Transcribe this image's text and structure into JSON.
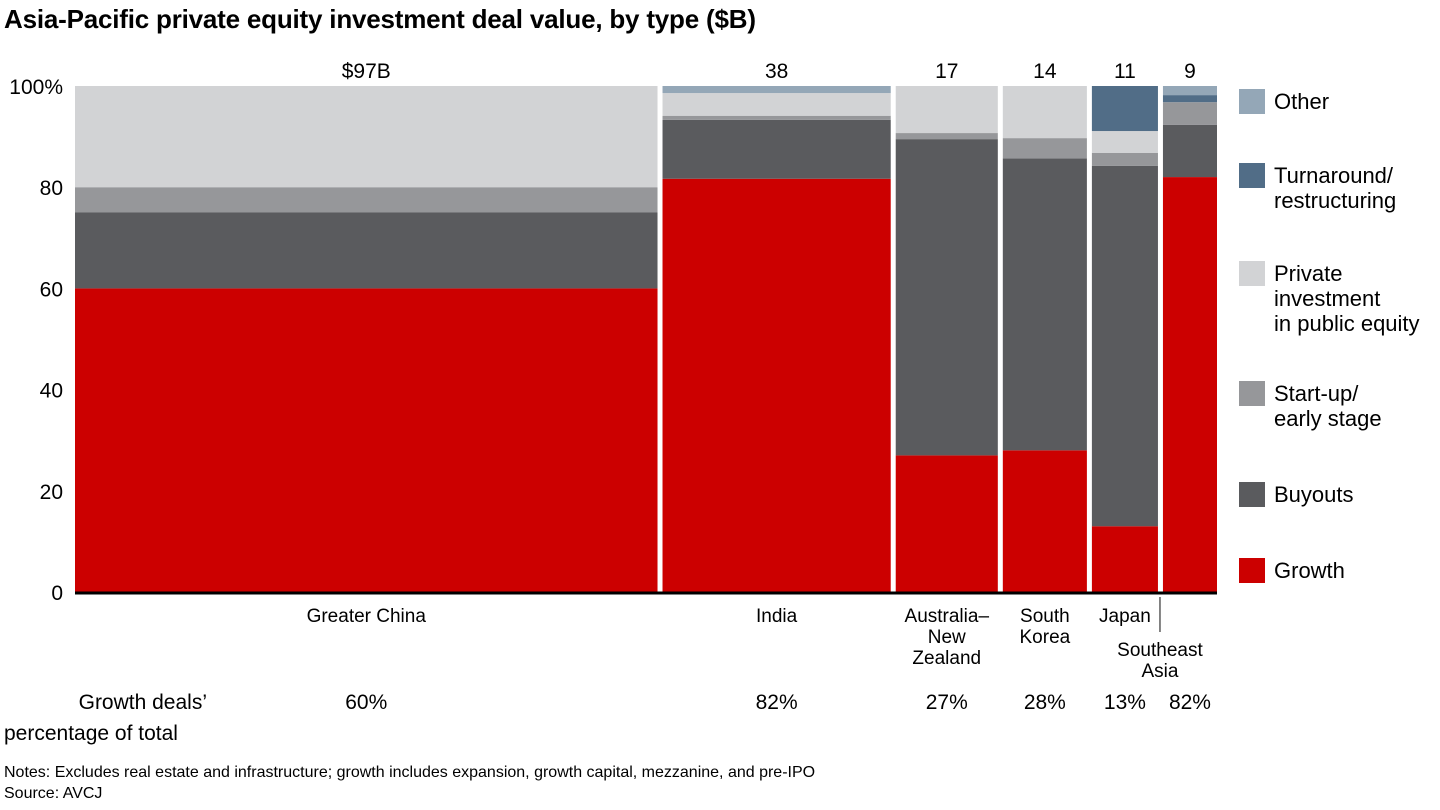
{
  "chart_data": {
    "type": "bar",
    "subtype": "marimekko (100% stacked, variable width)",
    "title": "Asia-Pacific private equity investment deal value, by type ($B)",
    "xlabel": "",
    "ylabel": "",
    "ylim": [
      0,
      100
    ],
    "yticks": [
      "0",
      "20",
      "40",
      "60",
      "80",
      "100%"
    ],
    "yticks_values": [
      0,
      20,
      40,
      60,
      80,
      100
    ],
    "grid": false,
    "legend_position": "right",
    "categories": [
      {
        "name": "Greater China",
        "label_lines": [
          "Greater China"
        ],
        "total_label": "$97B",
        "total": 97,
        "growth_pct_label": "60%"
      },
      {
        "name": "India",
        "label_lines": [
          "India"
        ],
        "total_label": "38",
        "total": 38,
        "growth_pct_label": "82%"
      },
      {
        "name": "Australia–New Zealand",
        "label_lines": [
          "Australia–",
          "New",
          "Zealand"
        ],
        "total_label": "17",
        "total": 17,
        "growth_pct_label": "27%"
      },
      {
        "name": "South Korea",
        "label_lines": [
          "South",
          "Korea"
        ],
        "total_label": "14",
        "total": 14,
        "growth_pct_label": "28%"
      },
      {
        "name": "Japan",
        "label_lines": [
          "Japan"
        ],
        "total_label": "11",
        "total": 11,
        "growth_pct_label": "13%"
      },
      {
        "name": "Southeast Asia",
        "label_lines": [
          "Southeast",
          "Asia"
        ],
        "total_label": "9",
        "total": 9,
        "growth_pct_label": "82%",
        "leader_line": true
      }
    ],
    "series": [
      {
        "name": "Growth",
        "legend_lines": [
          "Growth"
        ],
        "color": "#cc0000",
        "values": [
          60,
          82,
          27,
          28,
          13,
          82
        ]
      },
      {
        "name": "Buyouts",
        "legend_lines": [
          "Buyouts"
        ],
        "color": "#5a5b5e",
        "values": [
          15,
          11.7,
          62.5,
          57.7,
          71.2,
          10.3
        ]
      },
      {
        "name": "Start-up/early stage",
        "legend_lines": [
          "Start-up/",
          "early stage"
        ],
        "color": "#96979a",
        "values": [
          5,
          0.8,
          1.2,
          4,
          2.6,
          4.5
        ]
      },
      {
        "name": "Private investment in public equity",
        "legend_lines": [
          "Private",
          "investment",
          "in public equity"
        ],
        "color": "#d2d3d5",
        "values": [
          20,
          4.5,
          9.3,
          10.3,
          4.3,
          0
        ]
      },
      {
        "name": "Turnaround/restructuring",
        "legend_lines": [
          "Turnaround/",
          "restructuring"
        ],
        "color": "#516d87",
        "values": [
          0,
          0,
          0,
          0,
          8.9,
          1.4
        ]
      },
      {
        "name": "Other",
        "legend_lines": [
          "Other"
        ],
        "color": "#94a7b7",
        "values": [
          0,
          1.4,
          0,
          0,
          0,
          1.8
        ]
      }
    ],
    "growth_row_label_lines": [
      "Growth deals’",
      "percentage of total"
    ]
  },
  "notes": {
    "notes_line": "Notes: Excludes real estate and infrastructure; growth includes expansion, growth capital, mezzanine, and pre-IPO",
    "source_line": "Source: AVCJ"
  }
}
